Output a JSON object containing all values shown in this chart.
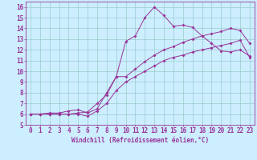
{
  "xlabel": "Windchill (Refroidissement éolien,°C)",
  "bg_color": "#cceeff",
  "grid_color": "#99cccc",
  "line_color": "#993399",
  "xlim": [
    -0.5,
    23.5
  ],
  "ylim": [
    5,
    16.5
  ],
  "xticks": [
    0,
    1,
    2,
    3,
    4,
    5,
    6,
    7,
    8,
    9,
    10,
    11,
    12,
    13,
    14,
    15,
    16,
    17,
    18,
    19,
    20,
    21,
    22,
    23
  ],
  "yticks": [
    5,
    6,
    7,
    8,
    9,
    10,
    11,
    12,
    13,
    14,
    15,
    16
  ],
  "line1_x": [
    0,
    1,
    2,
    3,
    4,
    5,
    6,
    7,
    8,
    9,
    10,
    11,
    12,
    13,
    14,
    15,
    16,
    17,
    18,
    19,
    20,
    21,
    22,
    23
  ],
  "line1_y": [
    6.0,
    6.0,
    6.0,
    6.0,
    6.0,
    6.1,
    6.2,
    7.0,
    7.8,
    9.5,
    12.8,
    13.3,
    15.0,
    16.0,
    15.2,
    14.2,
    14.3,
    14.1,
    13.3,
    12.6,
    11.9,
    11.8,
    12.0,
    11.4
  ],
  "line2_x": [
    0,
    1,
    2,
    3,
    4,
    5,
    6,
    7,
    8,
    9,
    10,
    11,
    12,
    13,
    14,
    15,
    16,
    17,
    18,
    19,
    20,
    21,
    22,
    23
  ],
  "line2_y": [
    6.0,
    6.0,
    6.1,
    6.1,
    6.3,
    6.4,
    6.1,
    6.5,
    8.0,
    9.5,
    9.5,
    10.2,
    10.9,
    11.5,
    12.0,
    12.3,
    12.7,
    13.0,
    13.3,
    13.5,
    13.7,
    14.0,
    13.8,
    12.6
  ],
  "line3_x": [
    0,
    1,
    2,
    3,
    4,
    5,
    6,
    7,
    8,
    9,
    10,
    11,
    12,
    13,
    14,
    15,
    16,
    17,
    18,
    19,
    20,
    21,
    22,
    23
  ],
  "line3_y": [
    6.0,
    6.0,
    6.0,
    6.0,
    6.0,
    6.0,
    5.8,
    6.3,
    7.0,
    8.2,
    9.0,
    9.5,
    10.0,
    10.5,
    11.0,
    11.3,
    11.5,
    11.8,
    12.0,
    12.2,
    12.4,
    12.6,
    12.9,
    11.3
  ],
  "tick_fontsize": 5.5,
  "xlabel_fontsize": 5.5,
  "lw": 0.7,
  "ms": 2.0
}
